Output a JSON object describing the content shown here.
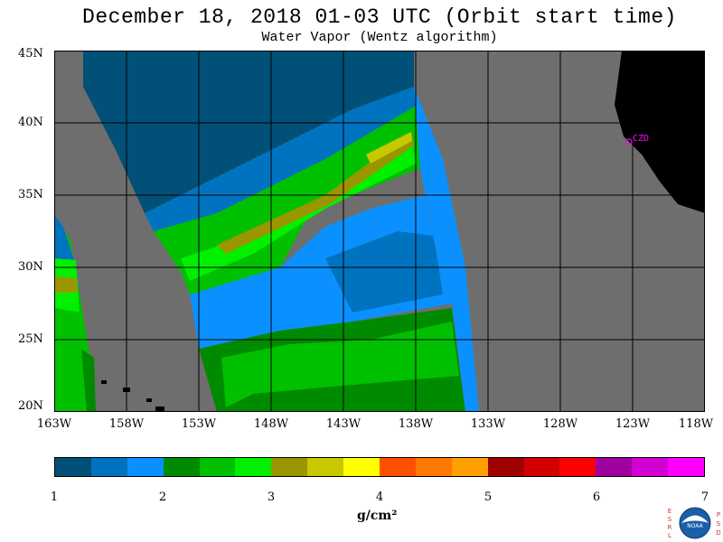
{
  "title": "December 18, 2018  01-03 UTC  (Orbit start time)",
  "subtitle": "Water Vapor (Wentz algorithm)",
  "map": {
    "lat_labels": [
      "45N",
      "40N",
      "35N",
      "30N",
      "25N",
      "20N"
    ],
    "lon_labels": [
      "163W",
      "158W",
      "153W",
      "148W",
      "143W",
      "138W",
      "133W",
      "128W",
      "123W",
      "118W"
    ],
    "lat_range": [
      20,
      45
    ],
    "lon_range": [
      -163,
      -118
    ],
    "grid": true,
    "no_data_color": "#6e6e6e",
    "land_color": "#000000",
    "station_label": "CZD",
    "station_color": "#ff00ff"
  },
  "colorbar": {
    "colors": [
      "#005078",
      "#0073c0",
      "#0a91ff",
      "#008a00",
      "#00c000",
      "#00f000",
      "#9a9600",
      "#c8c800",
      "#ffff00",
      "#ff5000",
      "#ff7800",
      "#ffa000",
      "#a00000",
      "#d20000",
      "#ff0000",
      "#a000a0",
      "#d200d2",
      "#ff00ff"
    ],
    "ticks": [
      "1",
      "2",
      "3",
      "4",
      "5",
      "6",
      "7"
    ],
    "range": [
      1,
      7
    ],
    "units_label": "g/cm²"
  },
  "logo": {
    "left_letters": [
      "E",
      "S",
      "R",
      "L"
    ],
    "right_letters": [
      "P",
      "S",
      "D"
    ],
    "name": "NOAA"
  }
}
